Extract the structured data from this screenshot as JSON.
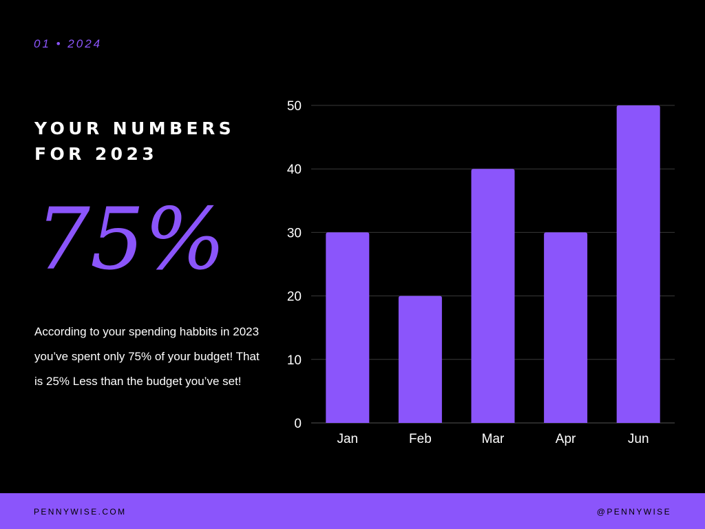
{
  "header": {
    "date_tag": "01 • 2024"
  },
  "headline": {
    "line1": "YOUR NUMBERS",
    "line2": "FOR 2023"
  },
  "stat": {
    "value": "75%"
  },
  "description": "According to your spending habbits in 2023 you’ve spent only 75% of your budget! That is 25% Less than the budget  you’ve set!",
  "footer": {
    "website": "PENNYWISE.COM",
    "handle": "@PENNYWISE"
  },
  "colors": {
    "accent": "#8b55fb",
    "background": "#000000",
    "text": "#ffffff",
    "gridline": "#3a3a3a"
  },
  "chart_data": {
    "type": "bar",
    "categories": [
      "Jan",
      "Feb",
      "Mar",
      "Apr",
      "Jun"
    ],
    "values": [
      30,
      20,
      40,
      30,
      50
    ],
    "ylim": [
      0,
      50
    ],
    "yticks": [
      0,
      10,
      20,
      30,
      40,
      50
    ],
    "title": "",
    "xlabel": "",
    "ylabel": "",
    "grid": true,
    "bar_color": "#8b55fb"
  }
}
